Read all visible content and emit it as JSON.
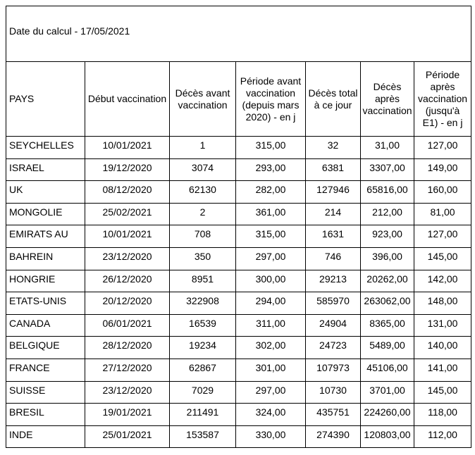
{
  "page": {
    "background_color": "#ffffff",
    "text_color": "#000000",
    "border_color": "#000000"
  },
  "table": {
    "caption": "Date du calcul - 17/05/2021",
    "columns": [
      {
        "key": "pays",
        "label": "PAYS"
      },
      {
        "key": "debut-vaccination",
        "label": "Début vaccination"
      },
      {
        "key": "deces-avant-vaccination",
        "label": "Décès avant\nvaccination"
      },
      {
        "key": "periode-avant-vaccination",
        "label": "Période avant\nvaccination\n(depuis mars\n2020) - en j"
      },
      {
        "key": "deces-total",
        "label": "Décès total\nà ce jour"
      },
      {
        "key": "deces-apres-vaccination",
        "label": "Décès\naprès\nvaccination"
      },
      {
        "key": "periode-apres-vaccination",
        "label": "Période\naprès\nvaccination\n(jusqu'à\nE1) - en j"
      }
    ],
    "rows": [
      [
        "SEYCHELLES",
        "10/01/2021",
        "1",
        "315,00",
        "32",
        "31,00",
        "127,00"
      ],
      [
        "ISRAEL",
        "19/12/2020",
        "3074",
        "293,00",
        "6381",
        "3307,00",
        "149,00"
      ],
      [
        "UK",
        "08/12/2020",
        "62130",
        "282,00",
        "127946",
        "65816,00",
        "160,00"
      ],
      [
        "MONGOLIE",
        "25/02/2021",
        "2",
        "361,00",
        "214",
        "212,00",
        "81,00"
      ],
      [
        "EMIRATS AU",
        "10/01/2021",
        "708",
        "315,00",
        "1631",
        "923,00",
        "127,00"
      ],
      [
        "BAHREIN",
        "23/12/2020",
        "350",
        "297,00",
        "746",
        "396,00",
        "145,00"
      ],
      [
        "HONGRIE",
        "26/12/2020",
        "8951",
        "300,00",
        "29213",
        "20262,00",
        "142,00"
      ],
      [
        "ETATS-UNIS",
        "20/12/2020",
        "322908",
        "294,00",
        "585970",
        "263062,00",
        "148,00"
      ],
      [
        "CANADA",
        "06/01/2021",
        "16539",
        "311,00",
        "24904",
        "8365,00",
        "131,00"
      ],
      [
        "BELGIQUE",
        "28/12/2020",
        "19234",
        "302,00",
        "24723",
        "5489,00",
        "140,00"
      ],
      [
        "FRANCE",
        "27/12/2020",
        "62867",
        "301,00",
        "107973",
        "45106,00",
        "141,00"
      ],
      [
        "SUISSE",
        "23/12/2020",
        "7029",
        "297,00",
        "10730",
        "3701,00",
        "145,00"
      ],
      [
        "BRESIL",
        "19/01/2021",
        "211491",
        "324,00",
        "435751",
        "224260,00",
        "118,00"
      ],
      [
        "INDE",
        "25/01/2021",
        "153587",
        "330,00",
        "274390",
        "120803,00",
        "112,00"
      ]
    ]
  }
}
